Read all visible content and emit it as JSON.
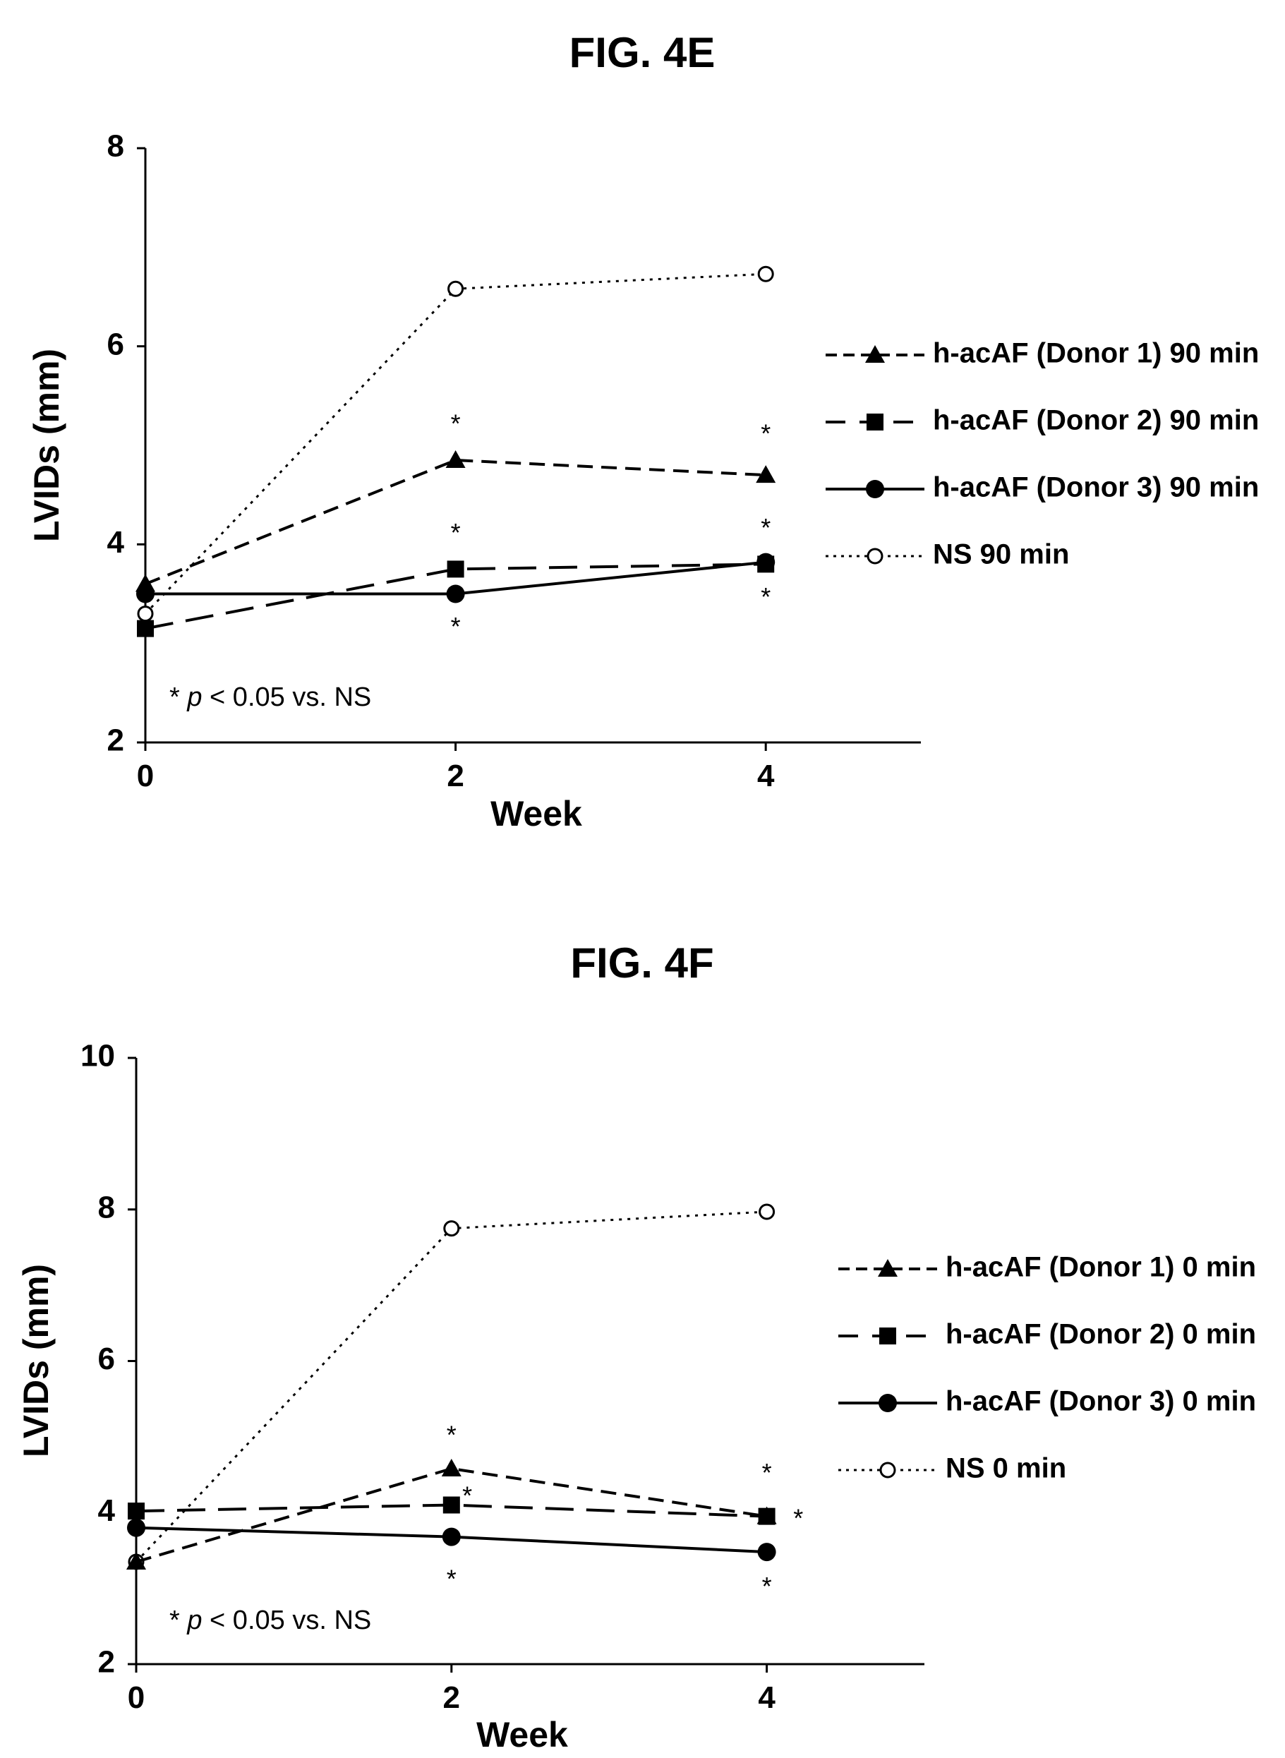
{
  "chart_data": [
    {
      "type": "line",
      "title": "FIG. 4E",
      "xlabel": "Week",
      "ylabel": "LVIDs (mm)",
      "x": [
        0,
        2,
        4
      ],
      "x_ticks": [
        "0",
        "2",
        "4"
      ],
      "xlim": [
        0,
        5
      ],
      "ylim": [
        2,
        8
      ],
      "y_ticks": [
        "2",
        "4",
        "6",
        "8"
      ],
      "grid": false,
      "legend_position": "right",
      "annotation_prefix": "* ",
      "annotation_p": "p",
      "annotation_suffix": " < 0.05 vs. NS",
      "series": [
        {
          "name": "h-acAF (Donor 1) 90 min",
          "values": [
            3.6,
            4.85,
            4.7
          ],
          "style": "dashed",
          "marker": "triangle"
        },
        {
          "name": "h-acAF (Donor 2) 90 min",
          "values": [
            3.15,
            3.75,
            3.8
          ],
          "style": "longdash",
          "marker": "square"
        },
        {
          "name": "h-acAF (Donor 3) 90 min",
          "values": [
            3.5,
            3.5,
            3.82
          ],
          "style": "solid",
          "marker": "circle"
        },
        {
          "name": "NS 90 min",
          "values": [
            3.3,
            6.58,
            6.73
          ],
          "style": "dotted",
          "marker": "open-circle"
        }
      ],
      "significance_marks": [
        {
          "x": 2,
          "y": 5.2,
          "label": "*"
        },
        {
          "x": 2,
          "y": 4.1,
          "label": "*"
        },
        {
          "x": 2,
          "y": 3.15,
          "label": "*"
        },
        {
          "x": 4,
          "y": 5.1,
          "label": "*"
        },
        {
          "x": 4,
          "y": 4.15,
          "label": "*"
        },
        {
          "x": 4,
          "y": 3.45,
          "label": "*"
        }
      ]
    },
    {
      "type": "line",
      "title": "FIG. 4F",
      "xlabel": "Week",
      "ylabel": "LVIDs (mm)",
      "x": [
        0,
        2,
        4
      ],
      "x_ticks": [
        "0",
        "2",
        "4"
      ],
      "xlim": [
        0,
        5
      ],
      "ylim": [
        2,
        10
      ],
      "y_ticks": [
        "2",
        "4",
        "6",
        "8",
        "10"
      ],
      "grid": false,
      "legend_position": "right",
      "annotation_prefix": "* ",
      "annotation_p": "p",
      "annotation_suffix": " < 0.05 vs. NS",
      "series": [
        {
          "name": "h-acAF (Donor 1) 0 min",
          "values": [
            3.35,
            4.58,
            3.95
          ],
          "style": "dashed",
          "marker": "triangle"
        },
        {
          "name": "h-acAF (Donor 2) 0 min",
          "values": [
            4.02,
            4.1,
            3.95
          ],
          "style": "longdash",
          "marker": "square"
        },
        {
          "name": "h-acAF (Donor 3) 0 min",
          "values": [
            3.8,
            3.68,
            3.48
          ],
          "style": "solid",
          "marker": "circle"
        },
        {
          "name": "NS 0 min",
          "values": [
            3.35,
            7.75,
            7.97
          ],
          "style": "dotted",
          "marker": "open-circle"
        }
      ],
      "significance_marks": [
        {
          "x": 2,
          "y": 5.0,
          "label": "*"
        },
        {
          "x": 2.1,
          "y": 4.2,
          "label": "*"
        },
        {
          "x": 2,
          "y": 3.1,
          "label": "*"
        },
        {
          "x": 4,
          "y": 4.5,
          "label": "*"
        },
        {
          "x": 4.2,
          "y": 3.9,
          "label": "*"
        },
        {
          "x": 4,
          "y": 3.0,
          "label": "*"
        }
      ]
    }
  ]
}
